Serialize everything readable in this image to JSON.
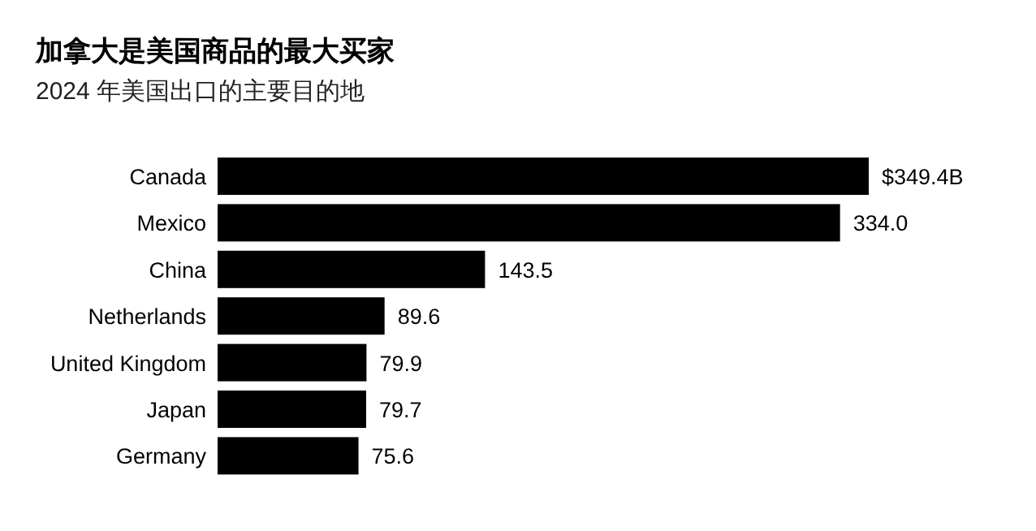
{
  "chart_data": {
    "type": "bar",
    "orientation": "horizontal",
    "title": "加拿大是美国商品的最大买家",
    "subtitle": "2024 年美国出口的主要目的地",
    "categories": [
      "Canada",
      "Mexico",
      "China",
      "Netherlands",
      "United Kingdom",
      "Japan",
      "Germany"
    ],
    "values": [
      349.4,
      334.0,
      143.5,
      89.6,
      79.9,
      79.7,
      75.6
    ],
    "value_labels": [
      "$349.4B",
      "334.0",
      "143.5",
      "89.6",
      "79.9",
      "79.7",
      "75.6"
    ],
    "color": "#000000"
  }
}
